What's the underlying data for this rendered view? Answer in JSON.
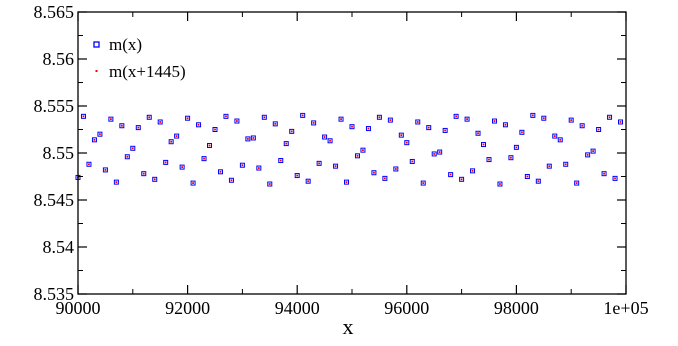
{
  "chart_data": {
    "type": "scatter",
    "title": "",
    "xlabel": "x",
    "ylabel": "",
    "xlim": [
      90000,
      100000
    ],
    "ylim": [
      8.535,
      8.565
    ],
    "x_ticks": [
      90000,
      92000,
      94000,
      96000,
      98000,
      100000
    ],
    "x_tick_labels": [
      "90000",
      "92000",
      "94000",
      "96000",
      "98000",
      "1e+05"
    ],
    "y_ticks": [
      8.535,
      8.54,
      8.545,
      8.55,
      8.555,
      8.56,
      8.565
    ],
    "y_tick_labels": [
      "8.535",
      "8.54",
      "8.545",
      "8.55",
      "8.555",
      "8.56",
      "8.565"
    ],
    "grid": false,
    "legend_position": "top-left",
    "series": [
      {
        "name": "m(x)",
        "marker": "open-square",
        "color": "#0000ff"
      },
      {
        "name": "m(x+1445)",
        "marker": "dot",
        "color": "#ff0000"
      }
    ],
    "band": {
      "y_min": 8.5467,
      "y_max": 8.554,
      "center": 8.5503
    },
    "x": [
      90000,
      90100,
      90200,
      90300,
      90400,
      90500,
      90600,
      90700,
      90800,
      90900,
      91000,
      91100,
      91200,
      91300,
      91400,
      91500,
      91600,
      91700,
      91800,
      91900,
      92000,
      92100,
      92200,
      92300,
      92400,
      92500,
      92600,
      92700,
      92800,
      92900,
      93000,
      93100,
      93200,
      93300,
      93400,
      93500,
      93600,
      93700,
      93800,
      93900,
      94000,
      94100,
      94200,
      94300,
      94400,
      94500,
      94600,
      94700,
      94800,
      94900,
      95000,
      95100,
      95200,
      95300,
      95400,
      95500,
      95600,
      95700,
      95800,
      95900,
      96000,
      96100,
      96200,
      96300,
      96400,
      96500,
      96600,
      96700,
      96800,
      96900,
      97000,
      97100,
      97200,
      97300,
      97400,
      97500,
      97600,
      97700,
      97800,
      97900,
      98000,
      98100,
      98200,
      98300,
      98400,
      98500,
      98600,
      98700,
      98800,
      98900,
      99000,
      99100,
      99200,
      99300,
      99400,
      99500,
      99600,
      99700,
      99800,
      99900
    ],
    "m_values": [
      8.5474,
      8.5539,
      8.5488,
      8.5514,
      8.552,
      8.5482,
      8.5536,
      8.5469,
      8.5529,
      8.5496,
      8.5505,
      8.5527,
      8.5478,
      8.5538,
      8.5472,
      8.5533,
      8.549,
      8.5512,
      8.5518,
      8.5485,
      8.5537,
      8.5468,
      8.553,
      8.5494,
      8.5508,
      8.5525,
      8.548,
      8.5539,
      8.5471,
      8.5534,
      8.5487,
      8.5515,
      8.5516,
      8.5484,
      8.5538,
      8.5467,
      8.5531,
      8.5492,
      8.551,
      8.5523,
      8.5476,
      8.554,
      8.547,
      8.5532,
      8.5489,
      8.5517,
      8.5513,
      8.5486,
      8.5536,
      8.5469,
      8.5528,
      8.5497,
      8.5503,
      8.5526,
      8.5479,
      8.5538,
      8.5473,
      8.5535,
      8.5483,
      8.5519,
      8.5511,
      8.5491,
      8.5533,
      8.5468,
      8.5527,
      8.5499,
      8.5501,
      8.5524,
      8.5477,
      8.5539,
      8.5472,
      8.5536,
      8.5481,
      8.5521,
      8.5509,
      8.5493,
      8.5534,
      8.5467,
      8.553,
      8.5495,
      8.5506,
      8.5522,
      8.5475,
      8.554,
      8.547,
      8.5537,
      8.5486,
      8.5518,
      8.5514,
      8.5488,
      8.5535,
      8.5468,
      8.5529,
      8.5498,
      8.5502,
      8.5525,
      8.5478,
      8.5538,
      8.5473,
      8.5533
    ]
  }
}
